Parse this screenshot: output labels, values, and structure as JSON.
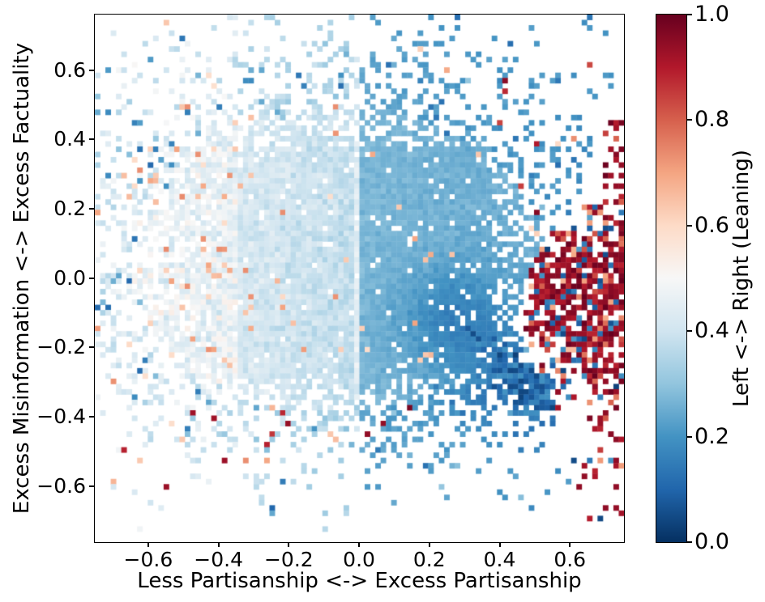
{
  "chart_data": {
    "type": "heatmap",
    "title": "",
    "xlabel": "Less Partisanship <-> Excess Partisanship",
    "ylabel": "Excess Misinformation  <-> Excess Factuality",
    "xlim": [
      -0.752,
      0.754
    ],
    "ylim": [
      -0.762,
      0.76
    ],
    "x_ticks": [
      {
        "v": -0.6,
        "label": "−0.6"
      },
      {
        "v": -0.4,
        "label": "−0.4"
      },
      {
        "v": -0.2,
        "label": "−0.2"
      },
      {
        "v": 0.0,
        "label": "0.0"
      },
      {
        "v": 0.2,
        "label": "0.2"
      },
      {
        "v": 0.4,
        "label": "0.4"
      },
      {
        "v": 0.6,
        "label": "0.6"
      }
    ],
    "y_ticks": [
      {
        "v": 0.6,
        "label": "0.6"
      },
      {
        "v": 0.4,
        "label": "0.4"
      },
      {
        "v": 0.2,
        "label": "0.2"
      },
      {
        "v": 0.0,
        "label": "0.0"
      },
      {
        "v": -0.2,
        "label": "−0.2"
      },
      {
        "v": -0.4,
        "label": "−0.4"
      },
      {
        "v": -0.6,
        "label": "−0.6"
      }
    ],
    "colorbar": {
      "label": "Left <-> Right (Leaning)",
      "lim": [
        0.0,
        1.0
      ],
      "ticks": [
        {
          "v": 0.0,
          "label": "0.0"
        },
        {
          "v": 0.2,
          "label": "0.2"
        },
        {
          "v": 0.4,
          "label": "0.4"
        },
        {
          "v": 0.6,
          "label": "0.6"
        },
        {
          "v": 0.8,
          "label": "0.8"
        },
        {
          "v": 1.0,
          "label": "1.0"
        }
      ],
      "cmap_name": "RdBu_r",
      "cmap_stops": [
        "#053061",
        "#2166ac",
        "#4393c3",
        "#92c5de",
        "#d1e5f0",
        "#f7f7f7",
        "#fddbc7",
        "#f4a582",
        "#d6604d",
        "#b2182b",
        "#67001f"
      ]
    },
    "grid": {
      "nx": 100,
      "ny": 100,
      "seed": 20170613
    },
    "field": {
      "base_cloud": {
        "cx": -0.06,
        "cy": 0.02,
        "sx": 0.4,
        "sy_up": 0.32,
        "sy_down": 0.27,
        "amp": 1.35
      },
      "core_plateau": {
        "x0": -0.5,
        "x1": 0.375,
        "y0": -0.32,
        "y1": 0.41,
        "p": 0.93
      },
      "red_cluster": {
        "cx": 0.64,
        "cy": -0.07,
        "sx": 0.13,
        "sy": 0.16,
        "amp": 1.2,
        "xmin": 0.42,
        "edge": {
          "cx": 0.75,
          "cy": -0.08,
          "sx": 0.1,
          "sy": 0.26,
          "amp": 0.95
        },
        "hole_prob": 0.12,
        "mix_darkblue": 0.14,
        "mix_midred": 0.16,
        "darkblue_lowy_boost": 0.45
      },
      "dark_streak": {
        "x0": 0.28,
        "y0": -0.13,
        "x1": 0.5,
        "y1": -0.34,
        "sigma": 0.055,
        "amp": 0.95,
        "t0": 0.03,
        "t1": 0.2,
        "halo_sigma": 0.11,
        "halo_darken": 0.1
      },
      "value_model": {
        "far_left_x": -0.35,
        "far_left_t": 0.46,
        "far_left_noise": 0.09,
        "left_t0": 0.373,
        "left_slope": -0.135,
        "left_noise": 0.055,
        "right_t0": 0.272,
        "right_slope": -0.05,
        "right_noise": 0.03,
        "sparse_darken": 0.04
      },
      "outliers": {
        "orange_prob_far_left": 0.06,
        "orange_prob_bottom": 0.02,
        "orange_prob_mid": 0.012,
        "orange_t": [
          0.58,
          0.74
        ],
        "darkblue_prob": 0.1,
        "darkblue_t": [
          0.1,
          0.32
        ],
        "darkred_prob": 0.03,
        "darkred_t": [
          0.82,
          1.0
        ]
      },
      "white_stripe_x": 0.0,
      "white_stripe_halfwidth": 0.008,
      "white_stripe_lighten": 0.07,
      "floor_density": 0.015,
      "floor_ymax": 0.72
    }
  }
}
